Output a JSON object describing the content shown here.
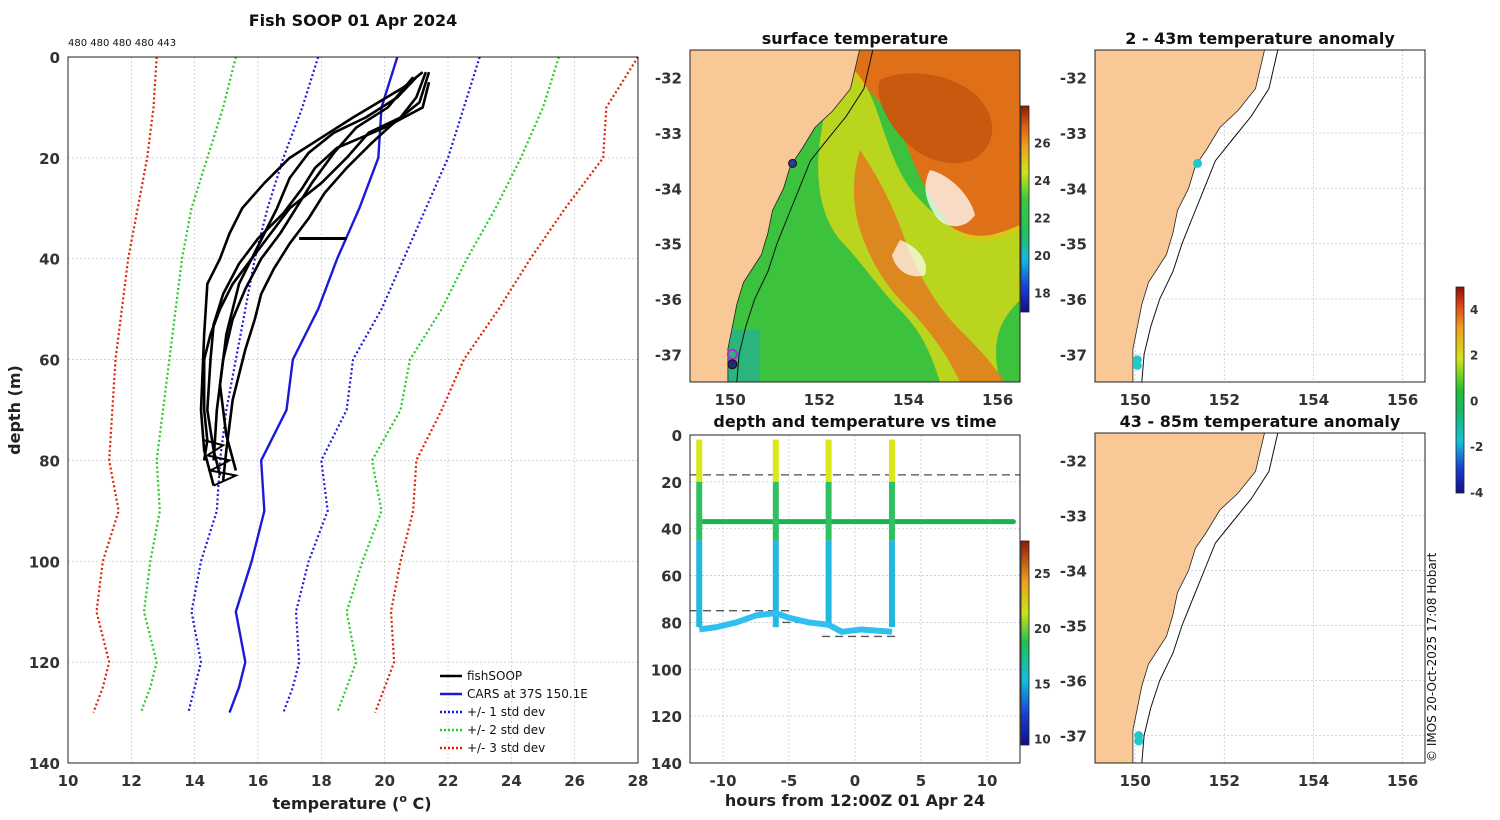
{
  "chart_data": [
    {
      "id": "profile",
      "type": "line",
      "title": "Fish SOOP 01 Apr 2024",
      "counts_label": "480 480 480 480 443",
      "xlabel": "temperature (",
      "xlabel_sup": "o",
      "xlabel_end": " C)",
      "ylabel": "depth (m)",
      "xlim": [
        10,
        28
      ],
      "ylim": [
        140,
        0
      ],
      "xticks": [
        "10",
        "12",
        "14",
        "16",
        "18",
        "20",
        "22",
        "24",
        "26",
        "28"
      ],
      "yticks": [
        "0",
        "20",
        "40",
        "60",
        "80",
        "100",
        "120",
        "140"
      ],
      "legend": [
        "fishSOOP",
        "CARS at 37S 150.1E",
        "+/- 1 std dev",
        "+/- 2 std dev",
        "+/- 3 std dev"
      ],
      "depth": [
        0,
        10,
        20,
        30,
        40,
        50,
        60,
        70,
        80,
        90,
        100,
        110,
        120,
        125,
        130
      ],
      "cars_mean": [
        20.4,
        19.9,
        19.8,
        19.2,
        18.5,
        17.9,
        17.1,
        16.9,
        16.1,
        16.2,
        15.8,
        15.3,
        15.6,
        15.4,
        15.1
      ],
      "series": [
        {
          "name": "+1 std",
          "color": "#1a1ad8",
          "values": [
            23.0,
            22.5,
            22.0,
            21.3,
            20.6,
            19.9,
            19.0,
            18.8,
            18.0,
            18.2,
            17.6,
            17.2,
            17.3,
            17.1,
            16.8
          ]
        },
        {
          "name": "-1 std",
          "color": "#1a1ad8",
          "values": [
            17.9,
            17.4,
            16.8,
            16.3,
            15.9,
            15.6,
            15.3,
            15.0,
            14.8,
            14.7,
            14.2,
            13.9,
            14.2,
            14.0,
            13.8
          ]
        },
        {
          "name": "+2 std",
          "color": "#22cc22",
          "values": [
            25.5,
            25.0,
            24.3,
            23.5,
            22.6,
            21.8,
            20.8,
            20.5,
            19.6,
            19.9,
            19.3,
            18.8,
            19.1,
            18.8,
            18.5
          ]
        },
        {
          "name": "-2 std",
          "color": "#22cc22",
          "values": [
            15.3,
            14.9,
            14.4,
            13.9,
            13.6,
            13.4,
            13.2,
            13.0,
            12.8,
            12.9,
            12.6,
            12.4,
            12.8,
            12.6,
            12.3
          ]
        },
        {
          "name": "+3 std",
          "color": "#dd2200",
          "values": [
            28.0,
            27.0,
            26.9,
            25.7,
            24.6,
            23.6,
            22.5,
            21.8,
            21.0,
            20.9,
            20.5,
            20.2,
            20.3,
            20.0,
            19.7
          ]
        },
        {
          "name": "-3 std",
          "color": "#dd2200",
          "values": [
            12.8,
            12.7,
            12.5,
            12.2,
            11.9,
            11.7,
            11.5,
            11.4,
            11.3,
            11.6,
            11.1,
            10.9,
            11.3,
            11.1,
            10.8
          ]
        }
      ],
      "fish_profiles": [
        [
          [
            21.3,
            3
          ],
          [
            21.0,
            8
          ],
          [
            20.5,
            12
          ],
          [
            19.5,
            15
          ],
          [
            18.8,
            20
          ],
          [
            18.0,
            25
          ],
          [
            17.0,
            30
          ],
          [
            16.4,
            35
          ],
          [
            15.8,
            40
          ],
          [
            15.2,
            45
          ],
          [
            14.8,
            50
          ],
          [
            14.5,
            55
          ],
          [
            14.3,
            60
          ],
          [
            14.3,
            70
          ],
          [
            14.4,
            76
          ],
          [
            14.3,
            80
          ]
        ],
        [
          [
            21.4,
            5
          ],
          [
            21.2,
            10
          ],
          [
            20.0,
            14
          ],
          [
            18.5,
            18
          ],
          [
            17.8,
            22
          ],
          [
            17.4,
            26
          ],
          [
            16.8,
            31
          ],
          [
            16.0,
            36
          ],
          [
            15.4,
            41
          ],
          [
            14.9,
            47
          ],
          [
            14.6,
            53
          ],
          [
            14.5,
            60
          ],
          [
            14.4,
            70
          ],
          [
            14.6,
            78
          ],
          [
            14.8,
            83
          ]
        ],
        [
          [
            21.2,
            3
          ],
          [
            20.6,
            6
          ],
          [
            19.8,
            9
          ],
          [
            19.0,
            12
          ],
          [
            18.0,
            16
          ],
          [
            17.0,
            20
          ],
          [
            16.2,
            25
          ],
          [
            15.5,
            30
          ],
          [
            15.1,
            35
          ],
          [
            14.8,
            40
          ],
          [
            14.4,
            45
          ],
          [
            14.3,
            55
          ],
          [
            14.2,
            70
          ],
          [
            14.3,
            78
          ],
          [
            14.6,
            85
          ]
        ],
        [
          [
            21.0,
            4
          ],
          [
            20.4,
            8
          ],
          [
            19.4,
            12
          ],
          [
            18.4,
            15
          ],
          [
            17.6,
            19
          ],
          [
            17.0,
            24
          ],
          [
            16.6,
            30
          ],
          [
            16.2,
            35
          ],
          [
            15.8,
            40
          ],
          [
            15.4,
            45
          ],
          [
            15.2,
            50
          ],
          [
            15.0,
            55
          ],
          [
            14.8,
            65
          ],
          [
            15.0,
            75
          ],
          [
            15.3,
            82
          ]
        ],
        [
          [
            21.4,
            3
          ],
          [
            21.1,
            9
          ],
          [
            20.3,
            13
          ],
          [
            19.6,
            17
          ],
          [
            18.8,
            22
          ],
          [
            18.1,
            27
          ],
          [
            17.6,
            32
          ],
          [
            17.0,
            37
          ],
          [
            16.5,
            42
          ],
          [
            16.1,
            47
          ],
          [
            15.9,
            52
          ],
          [
            15.6,
            58
          ],
          [
            15.2,
            68
          ],
          [
            15.0,
            78
          ],
          [
            14.9,
            84
          ]
        ],
        [
          [
            20.9,
            4
          ],
          [
            20.1,
            10
          ],
          [
            19.1,
            14
          ],
          [
            18.4,
            19
          ],
          [
            17.7,
            25
          ],
          [
            17.2,
            30
          ],
          [
            16.7,
            35
          ],
          [
            16.1,
            40
          ],
          [
            15.6,
            46
          ],
          [
            15.2,
            52
          ],
          [
            14.9,
            60
          ],
          [
            14.7,
            70
          ],
          [
            14.6,
            80
          ]
        ]
      ],
      "fish_hold": {
        "depth": 36,
        "x_from": 17.3,
        "x_to": 18.8
      }
    },
    {
      "id": "sst_map",
      "type": "heatmap",
      "title": "surface temperature",
      "xticks": [
        "150",
        "152",
        "154",
        "156"
      ],
      "yticks": [
        "-32",
        "-33",
        "-34",
        "-35",
        "-36",
        "-37"
      ],
      "colorbar_ticks": [
        "26",
        "24",
        "22",
        "20",
        "18"
      ],
      "lon_range": [
        149.1,
        156.5
      ],
      "lat_range": [
        -37.5,
        -31.5
      ]
    },
    {
      "id": "anomaly_2_43",
      "type": "scatter",
      "title": "2 - 43m temperature anomaly",
      "xticks": [
        "150",
        "152",
        "154",
        "156"
      ],
      "yticks": [
        "-32",
        "-33",
        "-34",
        "-35",
        "-36",
        "-37"
      ],
      "points": [
        [
          151.4,
          -33.55
        ],
        [
          150.05,
          -37.1
        ],
        [
          150.05,
          -37.2
        ]
      ]
    },
    {
      "id": "anomaly_43_85",
      "type": "scatter",
      "title": "43 - 85m temperature anomaly",
      "xticks": [
        "150",
        "152",
        "154",
        "156"
      ],
      "yticks": [
        "-32",
        "-33",
        "-34",
        "-35",
        "-36",
        "-37"
      ],
      "points": [
        [
          150.08,
          -37.0
        ],
        [
          150.08,
          -37.1
        ]
      ]
    },
    {
      "id": "anomaly_colorbar",
      "type": "heatmap",
      "ticks": [
        "4",
        "2",
        "0",
        "-2",
        "-4"
      ],
      "range": [
        -4,
        5
      ]
    },
    {
      "id": "depth_time",
      "type": "scatter",
      "title": "depth and temperature vs time",
      "xlabel": "hours from 12:00Z 01 Apr 24",
      "xlim": [
        -12.5,
        12.5
      ],
      "ylim": [
        140,
        0
      ],
      "xticks": [
        "-10",
        "-5",
        "0",
        "5",
        "10"
      ],
      "yticks": [
        "0",
        "20",
        "40",
        "60",
        "80",
        "100",
        "120",
        "140"
      ],
      "colorbar_ticks": [
        "25",
        "20",
        "15",
        "10"
      ],
      "hold_depth": 37,
      "dashed_levels": [
        17,
        75,
        80,
        86
      ],
      "dive_hours": [
        -11.8,
        -6.0,
        -2.0,
        2.8
      ]
    }
  ],
  "credit": "© IMOS 20-Oct-2025 17:08 Hobart"
}
